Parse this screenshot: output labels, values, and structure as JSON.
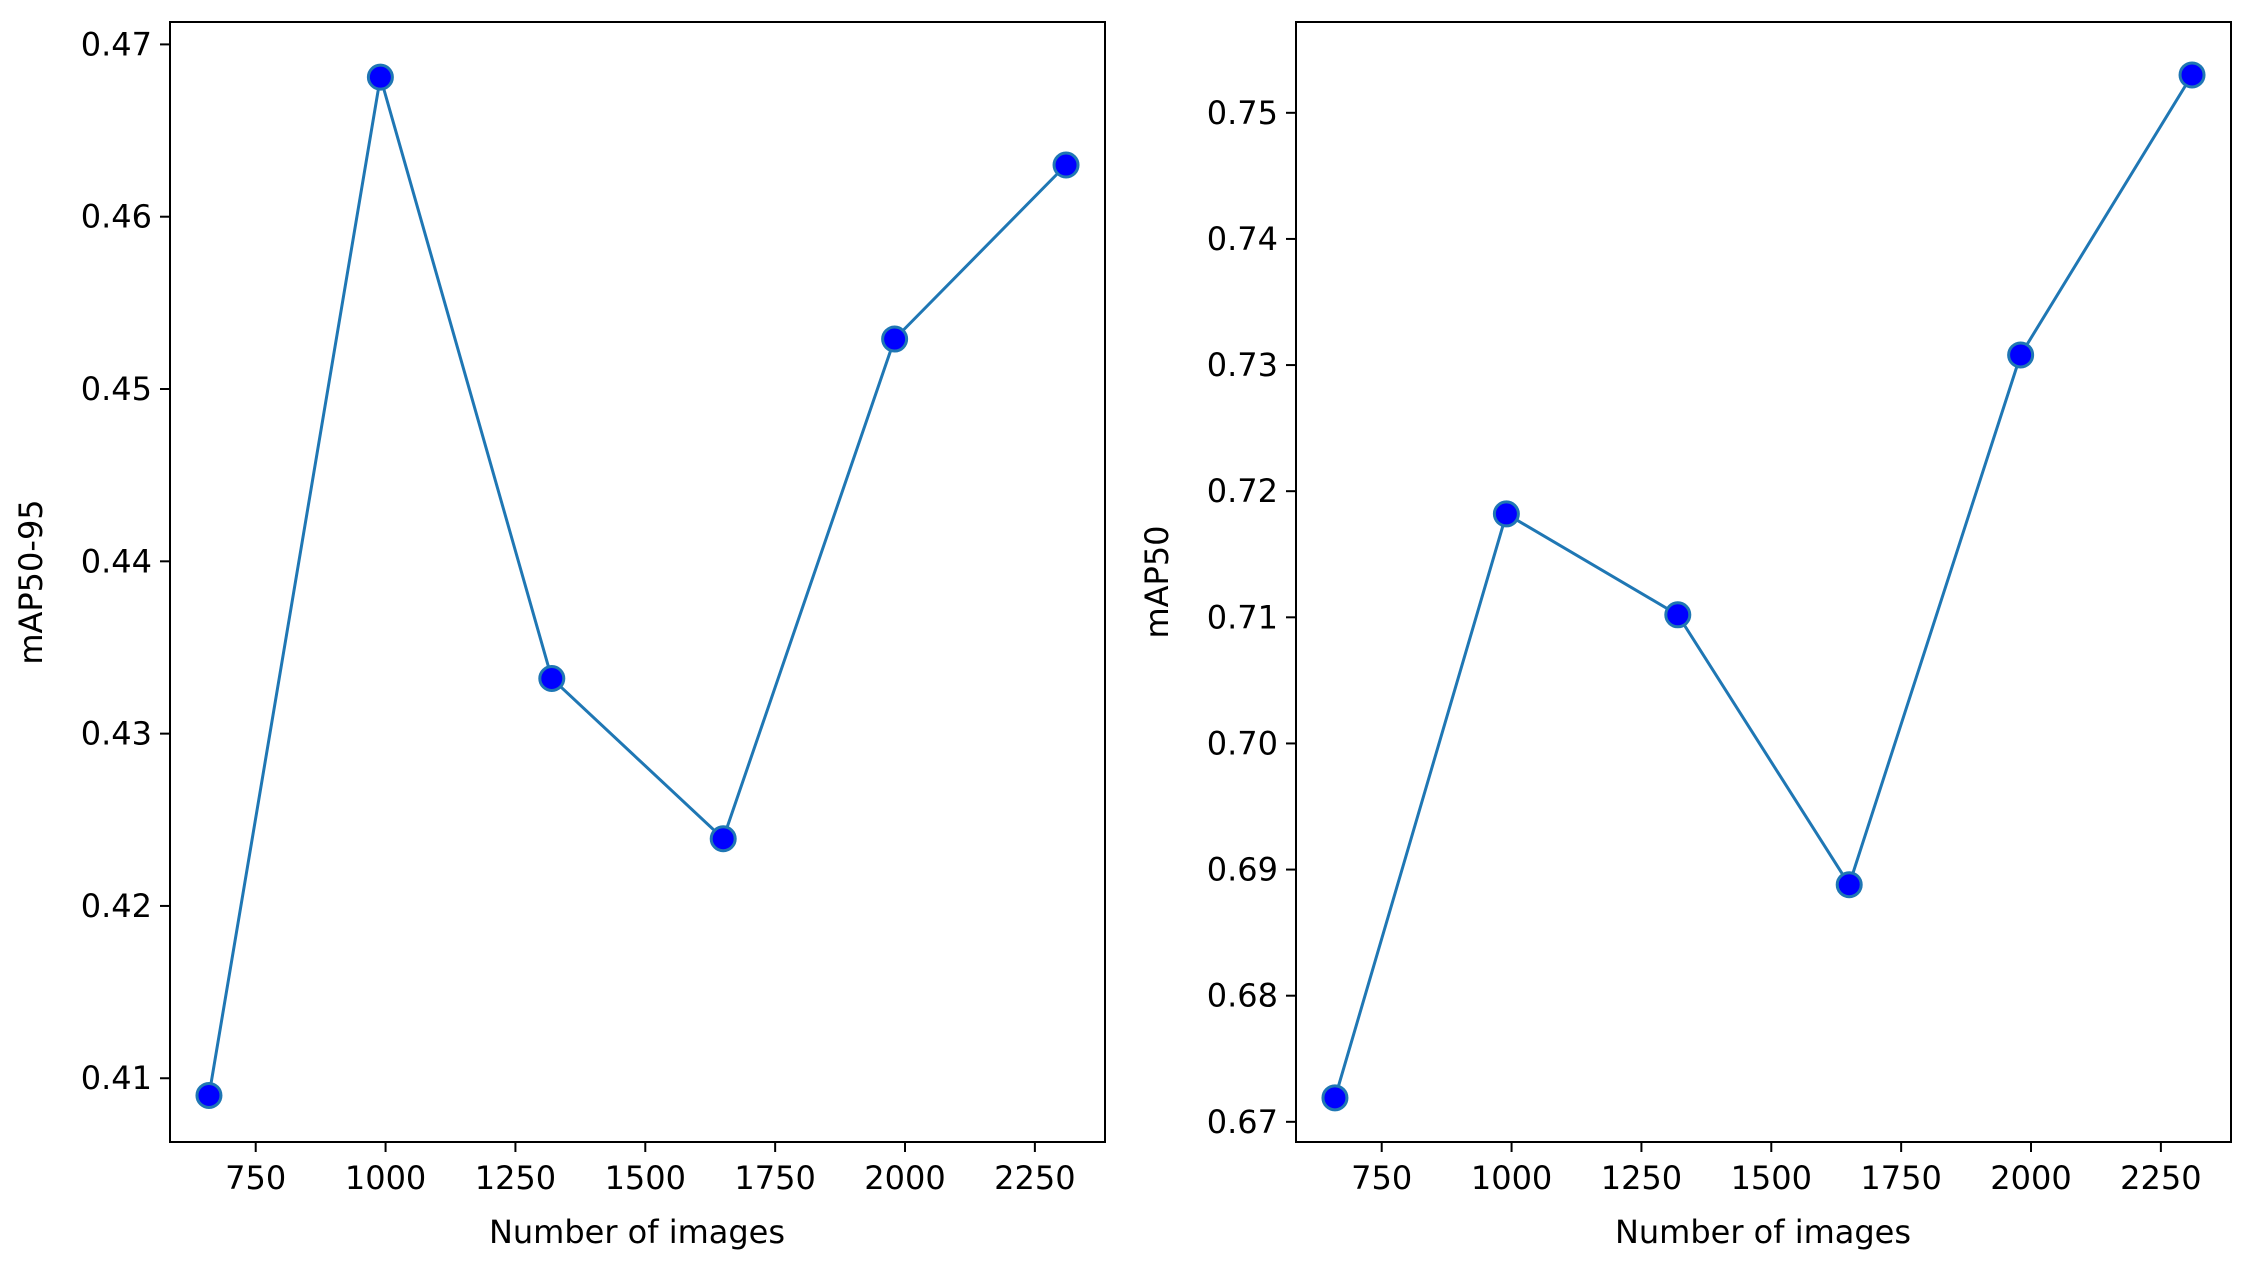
{
  "chart_data": [
    {
      "type": "line",
      "title": "",
      "xlabel": "Number of images",
      "ylabel": "mAP50-95",
      "x": [
        660,
        990,
        1320,
        1650,
        1980,
        2310
      ],
      "series": [
        {
          "values": [
            0.409,
            0.4681,
            0.4332,
            0.4239,
            0.4529,
            0.463
          ]
        }
      ],
      "xlim": [
        585,
        2385
      ],
      "ylim": [
        0.4063,
        0.4713
      ],
      "xticks": [
        750,
        1000,
        1250,
        1500,
        1750,
        2000,
        2250
      ],
      "xtick_labels": [
        "750",
        "1000",
        "1250",
        "1500",
        "1750",
        "2000",
        "2250"
      ],
      "yticks": [
        0.41,
        0.42,
        0.43,
        0.44,
        0.45,
        0.46,
        0.47
      ],
      "ytick_labels": [
        "0.41",
        "0.42",
        "0.43",
        "0.44",
        "0.45",
        "0.46",
        "0.47"
      ],
      "grid": false,
      "line_color": "#1f77b4",
      "marker_color": "#0000ff"
    },
    {
      "type": "line",
      "title": "",
      "xlabel": "Number of images",
      "ylabel": "mAP50",
      "x": [
        660,
        990,
        1320,
        1650,
        1980,
        2310
      ],
      "series": [
        {
          "values": [
            0.6719,
            0.7182,
            0.7102,
            0.6888,
            0.7308,
            0.753
          ]
        }
      ],
      "xlim": [
        585,
        2385
      ],
      "ylim": [
        0.6684,
        0.7572
      ],
      "xticks": [
        750,
        1000,
        1250,
        1500,
        1750,
        2000,
        2250
      ],
      "xtick_labels": [
        "750",
        "1000",
        "1250",
        "1500",
        "1750",
        "2000",
        "2250"
      ],
      "yticks": [
        0.67,
        0.68,
        0.69,
        0.7,
        0.71,
        0.72,
        0.73,
        0.74,
        0.75
      ],
      "ytick_labels": [
        "0.67",
        "0.68",
        "0.69",
        "0.70",
        "0.71",
        "0.72",
        "0.73",
        "0.74",
        "0.75"
      ],
      "grid": false,
      "line_color": "#1f77b4",
      "marker_color": "#0000ff"
    }
  ]
}
